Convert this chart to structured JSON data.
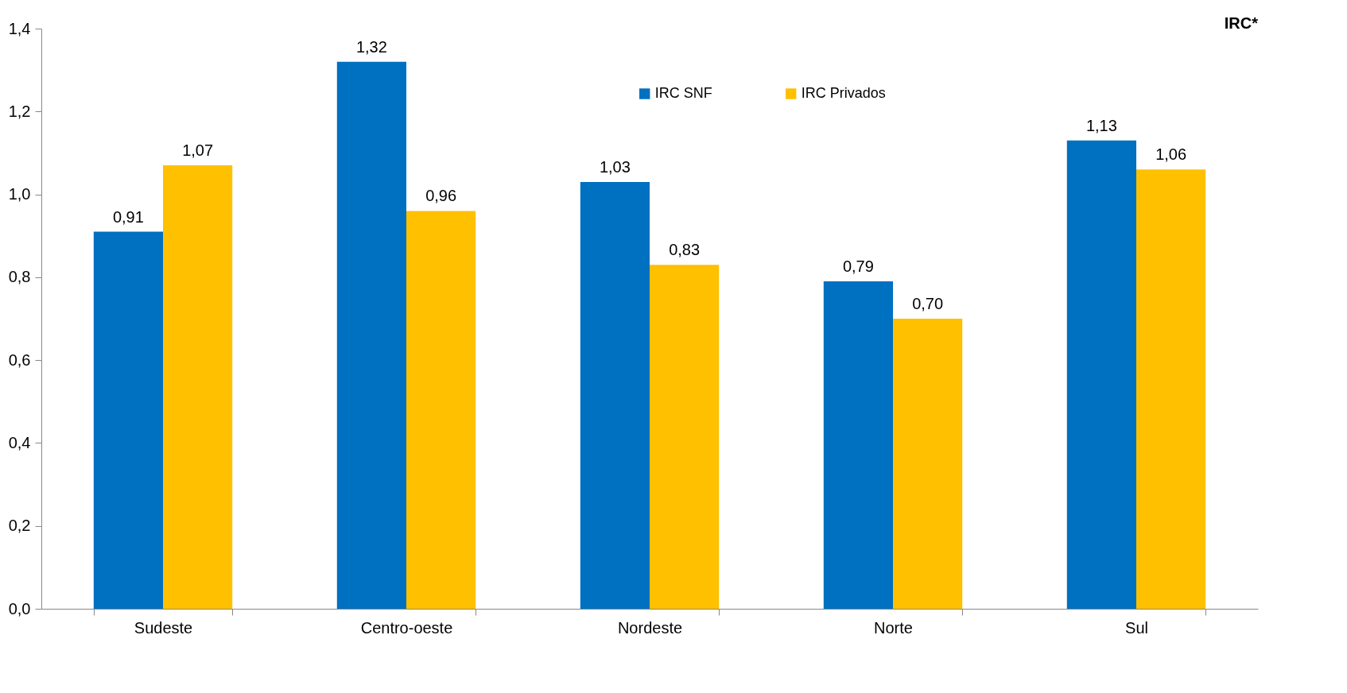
{
  "chart_data": {
    "type": "bar",
    "title": "IRC*",
    "categories": [
      "Sudeste",
      "Centro-oeste",
      "Nordeste",
      "Norte",
      "Sul"
    ],
    "series": [
      {
        "name": "IRC SNF",
        "color": "#0070c0",
        "values": [
          0.91,
          1.32,
          1.03,
          0.79,
          1.13
        ],
        "value_labels": [
          "0,91",
          "1,32",
          "1,03",
          "0,79",
          "1,13"
        ]
      },
      {
        "name": "IRC Privados",
        "color": "#ffc000",
        "values": [
          1.07,
          0.96,
          0.83,
          0.7,
          1.06
        ],
        "value_labels": [
          "1,07",
          "0,96",
          "0,83",
          "0,70",
          "1,06"
        ]
      }
    ],
    "ylim": [
      0,
      1.4
    ],
    "yticks": [
      {
        "value": 0,
        "label": "0,0"
      },
      {
        "value": 0.2,
        "label": "0,2"
      },
      {
        "value": 0.4,
        "label": "0,4"
      },
      {
        "value": 0.6,
        "label": "0,6"
      },
      {
        "value": 0.8,
        "label": "0,8"
      },
      {
        "value": 1.0,
        "label": "1,0"
      },
      {
        "value": 1.2,
        "label": "1,2"
      },
      {
        "value": 1.4,
        "label": "1,4"
      }
    ],
    "grid": false,
    "legend": "top"
  }
}
